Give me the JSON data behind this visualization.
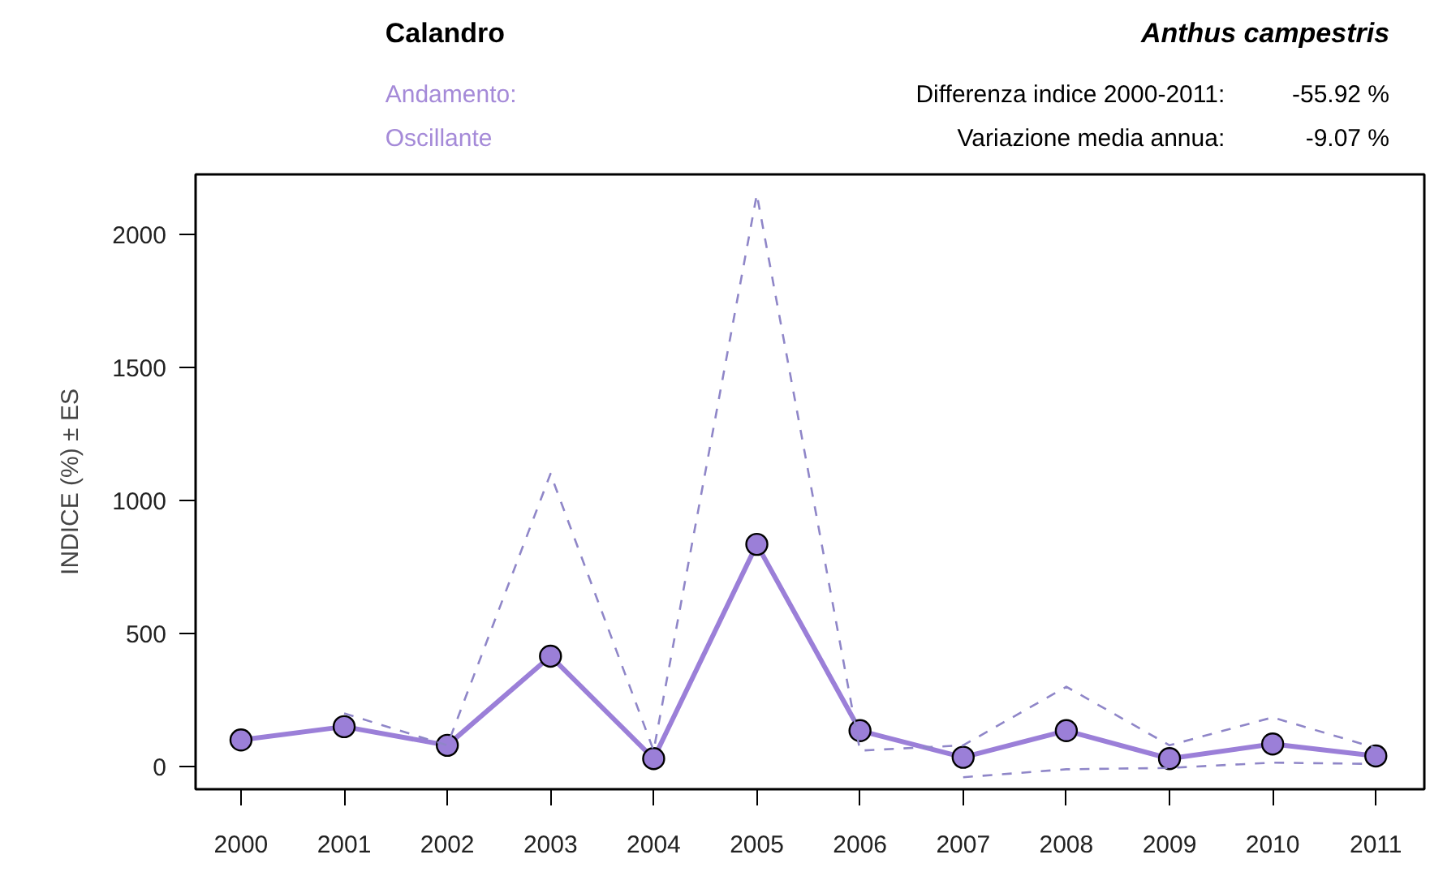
{
  "chart_data": {
    "type": "line",
    "title": "Calandro",
    "subtitle": "Anthus campestris",
    "ylabel": "INDICE (%) ± ES",
    "annotations": [
      "Andamento:",
      "Oscillante",
      "Differenza indice 2000-2011:",
      "-55.92 %",
      "Variazione media annua:",
      "-9.07 %"
    ],
    "x": [
      2000,
      2001,
      2002,
      2003,
      2004,
      2005,
      2006,
      2007,
      2008,
      2009,
      2010,
      2011
    ],
    "series": [
      {
        "color": "#9b7fd8",
        "values": [
          100,
          150,
          80,
          415,
          30,
          835,
          135,
          35,
          135,
          30,
          85,
          40
        ]
      },
      {
        "color": "#8f86c8",
        "line_style": "dashed",
        "marker": "none",
        "values": [
          null,
          200,
          80,
          1100,
          60,
          2150,
          60,
          80,
          300,
          80,
          185,
          70
        ]
      },
      {
        "color": "#8f86c8",
        "line_style": "dashed",
        "marker": "none",
        "values": [
          null,
          null,
          null,
          null,
          null,
          null,
          null,
          -40,
          -10,
          -5,
          15,
          10
        ]
      }
    ],
    "xlim": [
      1999.56,
      2011.47
    ],
    "ylim": [
      -85,
      2225
    ],
    "xticks": [
      2000,
      2001,
      2002,
      2003,
      2004,
      2005,
      2006,
      2007,
      2008,
      2009,
      2010,
      2011
    ],
    "yticks": [
      0,
      500,
      1000,
      1500,
      2000
    ],
    "grid": false,
    "marker": "circle",
    "line_style": "solid"
  }
}
